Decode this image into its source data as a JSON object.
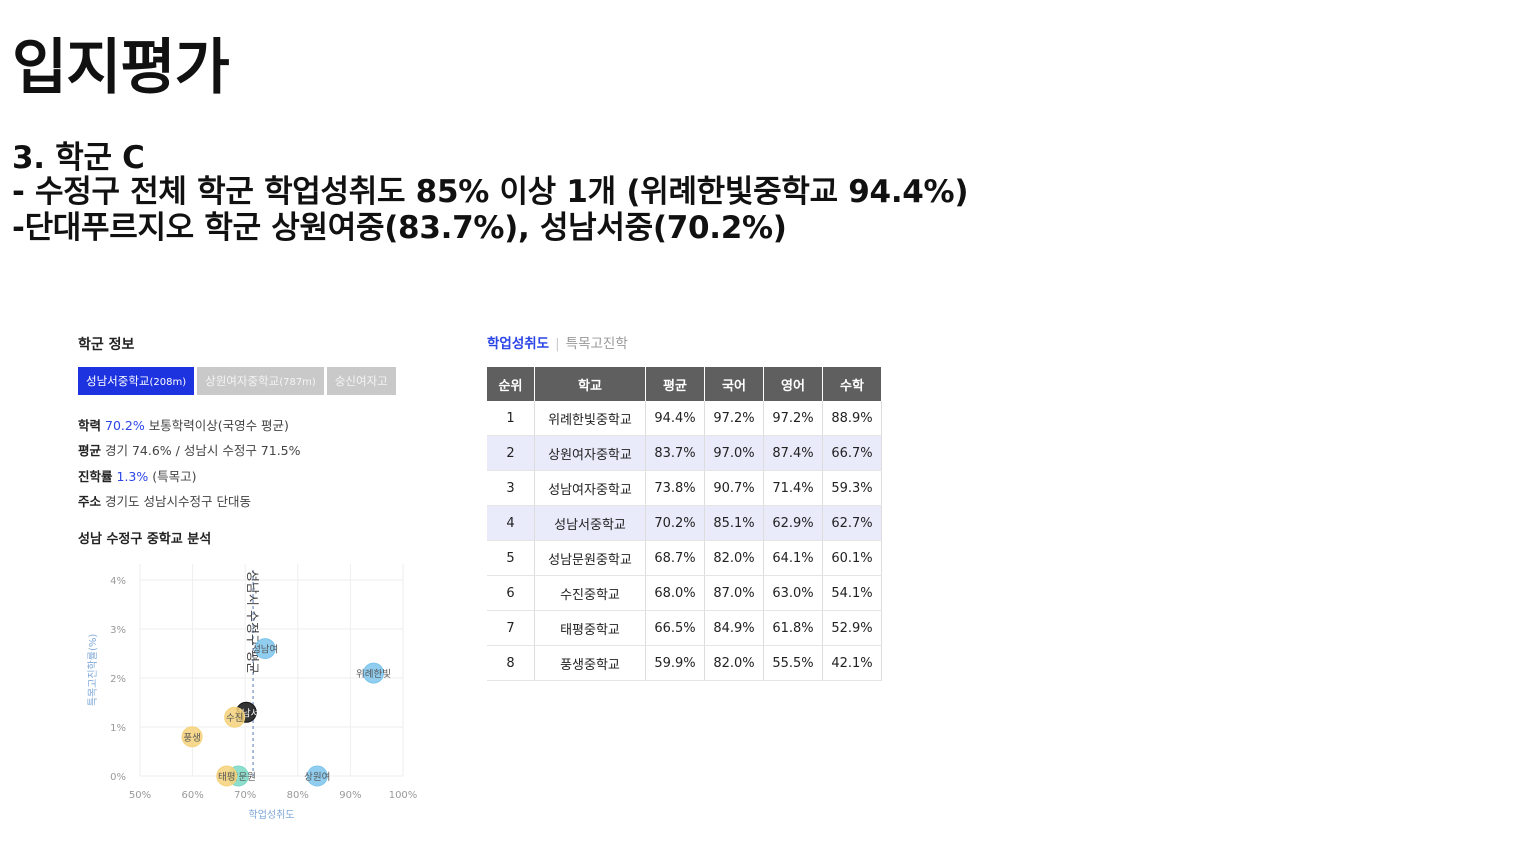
{
  "slide": {
    "title": "입지평가",
    "line1": "3. 학군 C",
    "line2": "- 수정구 전체 학군 학업성취도 85% 이상 1개 (위례한빛중학교 94.4%)",
    "line3": "-단대푸르지오 학군 상원여중(83.7%), 성남서중(70.2%)"
  },
  "panel": {
    "title": "학군 정보",
    "tabs": [
      {
        "name": "성남서중학교",
        "dist": "(208m)",
        "active": true
      },
      {
        "name": "상원여자중학교",
        "dist": "(787m)",
        "active": false
      },
      {
        "name": "숭신여자고",
        "dist": "",
        "active": false
      }
    ],
    "info": {
      "l1_key": "학력",
      "l1_val": "70.2%",
      "l1_rest": "보통학력이상(국영수 평균)",
      "l2_key": "평균",
      "l2_rest": "경기 74.6% / 성남시 수정구 71.5%",
      "l3_key": "진학률",
      "l3_val": "1.3%",
      "l3_rest": "(특목고)",
      "l4_key": "주소",
      "l4_rest": "경기도 성남시수정구 단대동"
    },
    "analysis_title": "성남 수정구 중학교 분석"
  },
  "chart_data": {
    "type": "scatter",
    "title": "",
    "xlabel": "학업성취도",
    "ylabel": "특목고진학률(%)",
    "xlim": [
      50,
      100
    ],
    "ylim": [
      0,
      4
    ],
    "xticks": [
      "50%",
      "60%",
      "70%",
      "80%",
      "90%",
      "100%"
    ],
    "yticks": [
      "0%",
      "1%",
      "2%",
      "3%",
      "4%"
    ],
    "grid": true,
    "reference_line": {
      "x": 71.5,
      "label": "성남시 수정구 평균"
    },
    "points": [
      {
        "label": "위례한빛",
        "x": 94.4,
        "y": 2.1,
        "color": "#7cc4ec"
      },
      {
        "label": "상원여",
        "x": 83.7,
        "y": 0.0,
        "color": "#7cc4ec"
      },
      {
        "label": "성남여",
        "x": 73.8,
        "y": 2.6,
        "color": "#7cc4ec"
      },
      {
        "label": "성남서",
        "x": 70.2,
        "y": 1.3,
        "color": "#111111"
      },
      {
        "label": "성남문원",
        "x": 68.7,
        "y": 0.0,
        "color": "#7ad8c4"
      },
      {
        "label": "수진",
        "x": 68.0,
        "y": 1.2,
        "color": "#f5d27a"
      },
      {
        "label": "태평",
        "x": 66.5,
        "y": 0.0,
        "color": "#f5d27a"
      },
      {
        "label": "풍생",
        "x": 59.9,
        "y": 0.8,
        "color": "#f5d27a"
      }
    ]
  },
  "table": {
    "tab_active": "학업성취도",
    "tab_inactive": "특목고진학",
    "headers": [
      "순위",
      "학교",
      "평균",
      "국어",
      "영어",
      "수학"
    ],
    "rows": [
      [
        "1",
        "위례한빛중학교",
        "94.4%",
        "97.2%",
        "97.2%",
        "88.9%"
      ],
      [
        "2",
        "상원여자중학교",
        "83.7%",
        "97.0%",
        "87.4%",
        "66.7%"
      ],
      [
        "3",
        "성남여자중학교",
        "73.8%",
        "90.7%",
        "71.4%",
        "59.3%"
      ],
      [
        "4",
        "성남서중학교",
        "70.2%",
        "85.1%",
        "62.9%",
        "62.7%"
      ],
      [
        "5",
        "성남문원중학교",
        "68.7%",
        "82.0%",
        "64.1%",
        "60.1%"
      ],
      [
        "6",
        "수진중학교",
        "68.0%",
        "87.0%",
        "63.0%",
        "54.1%"
      ],
      [
        "7",
        "태평중학교",
        "66.5%",
        "84.9%",
        "61.8%",
        "52.9%"
      ],
      [
        "8",
        "풍생중학교",
        "59.9%",
        "82.0%",
        "55.5%",
        "42.1%"
      ]
    ],
    "highlight_rows": [
      2,
      4
    ]
  }
}
